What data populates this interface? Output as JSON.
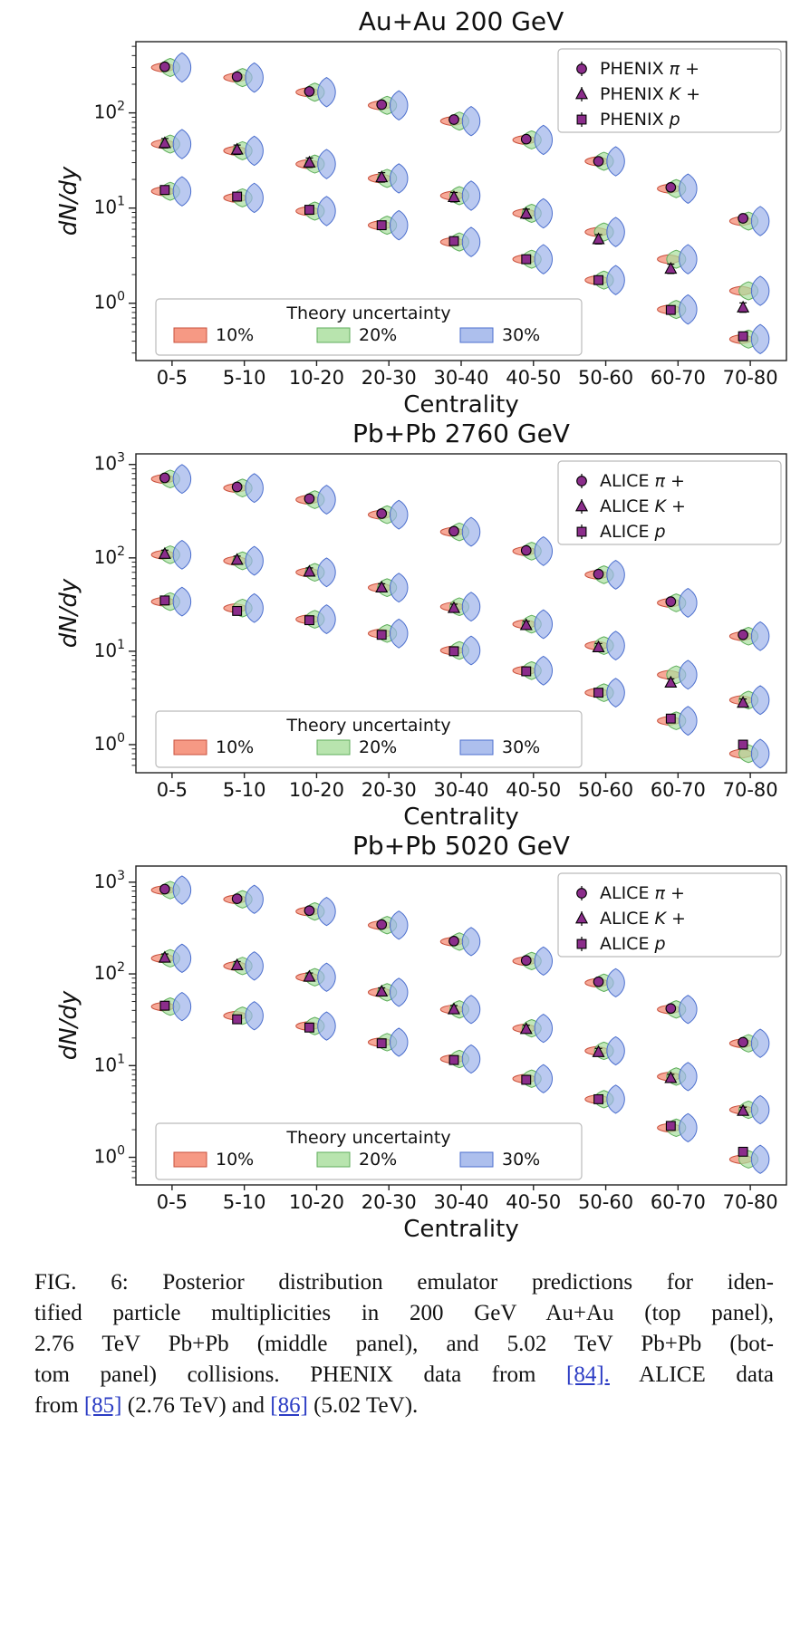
{
  "style": {
    "violin_levels": [
      {
        "label": "10%",
        "fill": "#F4876F",
        "edge": "#C8503C"
      },
      {
        "label": "20%",
        "fill": "#ABDFA0",
        "edge": "#5FAE5C"
      },
      {
        "label": "30%",
        "fill": "#9FB4EA",
        "edge": "#4C6FCE"
      }
    ],
    "marker_fill": "#8B2D8B",
    "marker_edge": "#000000",
    "axis_color": "#222222",
    "text_color": "#111111",
    "link_color": "#2B3CC4",
    "legend_border": "#bbbbbb"
  },
  "theory_legend": {
    "title": "Theory uncertainty",
    "items": [
      "10%",
      "20%",
      "30%"
    ]
  },
  "chart_data": [
    {
      "type": "violin",
      "title": "Au+Au 200 GeV",
      "xlabel": "Centrality",
      "ylabel": "dN/dy",
      "categories": [
        "0-5",
        "5-10",
        "10-20",
        "20-30",
        "30-40",
        "40-50",
        "50-60",
        "60-70",
        "70-80"
      ],
      "ylim": [
        0.25,
        560
      ],
      "yticks": [
        1,
        10,
        100
      ],
      "grid": false,
      "legend_position": "top-right",
      "uncertainty_levels": [
        0.1,
        0.2,
        0.3
      ],
      "legend": {
        "items": [
          {
            "experiment": "PHENIX",
            "particle": "π +",
            "marker": "circle"
          },
          {
            "experiment": "PHENIX",
            "particle": "K +",
            "marker": "triangle"
          },
          {
            "experiment": "PHENIX",
            "particle": "p",
            "marker": "square"
          }
        ]
      },
      "series": [
        {
          "name": "pi+",
          "marker": "circle",
          "err": 0.05,
          "pred": [
            300,
            235,
            165,
            120,
            82,
            52,
            31,
            16,
            7.3
          ],
          "data": [
            305,
            240,
            168,
            122,
            85,
            53,
            31,
            16.5,
            7.8
          ]
        },
        {
          "name": "K+",
          "marker": "triangle",
          "err": 0.12,
          "pred": [
            47,
            40,
            29,
            20.5,
            13.5,
            8.8,
            5.6,
            2.9,
            1.35
          ],
          "data": [
            48,
            41,
            30,
            21,
            13,
            8.7,
            4.7,
            2.3,
            0.9
          ]
        },
        {
          "name": "p",
          "marker": "square",
          "err": 0.08,
          "pred": [
            15,
            12.8,
            9.3,
            6.6,
            4.4,
            2.9,
            1.75,
            0.86,
            0.42
          ],
          "data": [
            15.5,
            13.2,
            9.6,
            6.6,
            4.5,
            2.9,
            1.75,
            0.85,
            0.45
          ]
        }
      ]
    },
    {
      "type": "violin",
      "title": "Pb+Pb 2760 GeV",
      "xlabel": "Centrality",
      "ylabel": "dN/dy",
      "categories": [
        "0-5",
        "5-10",
        "10-20",
        "20-30",
        "30-40",
        "40-50",
        "50-60",
        "60-70",
        "70-80"
      ],
      "ylim": [
        0.5,
        1300
      ],
      "yticks": [
        1,
        10,
        100,
        1000
      ],
      "grid": false,
      "legend_position": "top-right",
      "uncertainty_levels": [
        0.1,
        0.2,
        0.3
      ],
      "legend": {
        "items": [
          {
            "experiment": "ALICE",
            "particle": "π +",
            "marker": "circle"
          },
          {
            "experiment": "ALICE",
            "particle": "K +",
            "marker": "triangle"
          },
          {
            "experiment": "ALICE",
            "particle": "p",
            "marker": "square"
          }
        ]
      },
      "series": [
        {
          "name": "pi+",
          "marker": "circle",
          "err": 0.05,
          "pred": [
            700,
            560,
            420,
            290,
            190,
            118,
            66,
            33,
            14.5
          ],
          "data": [
            720,
            575,
            430,
            298,
            193,
            120,
            67,
            34,
            15
          ]
        },
        {
          "name": "K+",
          "marker": "triangle",
          "err": 0.1,
          "pred": [
            108,
            93,
            70,
            48,
            30,
            19.5,
            11.5,
            5.6,
            3.0
          ],
          "data": [
            110,
            95,
            71,
            48,
            29,
            19,
            11,
            4.6,
            2.8
          ]
        },
        {
          "name": "p",
          "marker": "square",
          "err": 0.08,
          "pred": [
            34,
            29,
            22,
            15.5,
            10.2,
            6.2,
            3.6,
            1.8,
            0.8
          ],
          "data": [
            35,
            27,
            21.5,
            15,
            10,
            6.1,
            3.6,
            1.9,
            1.0
          ]
        }
      ]
    },
    {
      "type": "violin",
      "title": "Pb+Pb 5020 GeV",
      "xlabel": "Centrality",
      "ylabel": "dN/dy",
      "categories": [
        "0-5",
        "5-10",
        "10-20",
        "20-30",
        "30-40",
        "40-50",
        "50-60",
        "60-70",
        "70-80"
      ],
      "ylim": [
        0.5,
        1500
      ],
      "yticks": [
        1,
        10,
        100,
        1000
      ],
      "grid": false,
      "legend_position": "top-right",
      "uncertainty_levels": [
        0.1,
        0.2,
        0.3
      ],
      "legend": {
        "items": [
          {
            "experiment": "ALICE",
            "particle": "π +",
            "marker": "circle"
          },
          {
            "experiment": "ALICE",
            "particle": "K +",
            "marker": "triangle"
          },
          {
            "experiment": "ALICE",
            "particle": "p",
            "marker": "square"
          }
        ]
      },
      "series": [
        {
          "name": "pi+",
          "marker": "circle",
          "err": 0.05,
          "pred": [
            820,
            650,
            480,
            340,
            225,
            138,
            80,
            41,
            17.5
          ],
          "data": [
            840,
            660,
            490,
            345,
            228,
            140,
            82,
            42,
            18
          ]
        },
        {
          "name": "K+",
          "marker": "triangle",
          "err": 0.1,
          "pred": [
            148,
            122,
            92,
            63,
            41,
            25.5,
            14.5,
            7.6,
            3.3
          ],
          "data": [
            150,
            124,
            93,
            64,
            41,
            25,
            14,
            7.3,
            3.2
          ]
        },
        {
          "name": "p",
          "marker": "square",
          "err": 0.08,
          "pred": [
            44,
            35,
            27,
            18,
            11.8,
            7.2,
            4.3,
            2.1,
            0.95
          ],
          "data": [
            45,
            32,
            26,
            17.5,
            11.5,
            7.0,
            4.3,
            2.2,
            1.15
          ]
        }
      ]
    }
  ],
  "caption": {
    "lines": [
      [
        {
          "t": "FIG. 6: Posterior distribution emulator predictions for iden-"
        }
      ],
      [
        {
          "t": "tified particle multiplicities in 200 GeV Au+Au (top panel),"
        }
      ],
      [
        {
          "t": "2.76 TeV Pb+Pb (middle panel), and 5.02 TeV Pb+Pb (bot-"
        }
      ],
      [
        {
          "t": "tom panel) collisions. PHENIX data from "
        },
        {
          "t": "[84].",
          "link": true
        },
        {
          "t": " ALICE data"
        }
      ],
      [
        {
          "t": "from "
        },
        {
          "t": "[85]",
          "link": true
        },
        {
          "t": " (2.76 TeV) and "
        },
        {
          "t": "[86]",
          "link": true
        },
        {
          "t": " (5.02 TeV)."
        }
      ]
    ]
  }
}
